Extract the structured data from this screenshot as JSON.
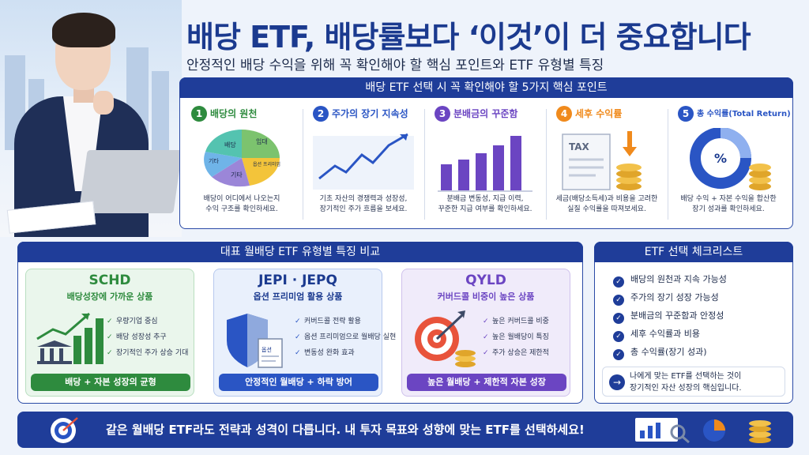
{
  "header": {
    "title": "배당 ETF, 배당률보다 ‘이것’이 더 중요합니다",
    "subtitle": "안정적인 배당 수익을 위해 꼭 확인해야 할 핵심 포인트와 ETF 유형별 특징"
  },
  "key_points": {
    "heading": "배당 ETF 선택 시 꼭 확인해야 할 5가지 핵심 포인트",
    "items": [
      {
        "num": "1",
        "label": "배당의 원천",
        "desc1": "배당이 어디에서 나오는지",
        "desc2": "수익 구조를 확인하세요.",
        "color": "#2e8b3e"
      },
      {
        "num": "2",
        "label": "주가의 장기 지속성",
        "desc1": "기초 자산의 경쟁력과 성장성,",
        "desc2": "장기적인 주가 흐름을 보세요.",
        "color": "#2a55c4"
      },
      {
        "num": "3",
        "label": "분배금의 꾸준함",
        "desc1": "분배금 변동성, 지급 이력,",
        "desc2": "꾸준한 지급 여부를 확인하세요.",
        "color": "#6b45c2"
      },
      {
        "num": "4",
        "label": "세후 수익률",
        "desc1": "세금(배당소득세)과 비용을 고려한",
        "desc2": "실질 수익률을 따져보세요.",
        "color": "#f08a1c"
      },
      {
        "num": "5",
        "label": "총 수익률(Total Return)",
        "desc1": "배당 수익 + 자본 수익을 합산한",
        "desc2": "장기 성과를 확인하세요.",
        "color": "#2a55c4"
      }
    ],
    "pie_labels": [
      "배당",
      "임대",
      "옵션 프리미엄",
      "기타",
      "기타"
    ],
    "tax_label": "TAX",
    "percent_label": "%"
  },
  "types": {
    "heading": "대표 월배당 ETF 유형별 특징 비교",
    "cards": [
      {
        "name": "SCHD",
        "sub": "배당성장에 가까운 상품",
        "items": [
          "우량기업 중심",
          "배당 성장성 추구",
          "장기적인 주가 상승 기대"
        ],
        "footer": "배당 + 자본 성장의 균형",
        "color": "#2e8b3e",
        "bg": "#eaf6ec"
      },
      {
        "name": "JEPI · JEPQ",
        "sub": "옵션 프리미엄 활용 상품",
        "items": [
          "커버드콜 전략 활용",
          "옵션 프리미엄으로 월배당 실현",
          "변동성 완화 효과"
        ],
        "footer": "안정적인 월배당 + 하락 방어",
        "color": "#2a55c4",
        "bg": "#e9f0fc"
      },
      {
        "name": "QYLD",
        "sub": "커버드콜 비중이 높은 상품",
        "items": [
          "높은 커버드콜 비중",
          "높은 월배당이 특징",
          "주가 상승은 제한적"
        ],
        "footer": "높은 월배당 + 제한적 자본 성장",
        "color": "#6b45c2",
        "bg": "#f0ebfa"
      }
    ],
    "shield_label": "옵션"
  },
  "checklist": {
    "heading": "ETF 선택 체크리스트",
    "items": [
      "배당의 원천과 지속 가능성",
      "주가의 장기 성장 가능성",
      "분배금의 꾸준함과 안정성",
      "세후 수익률과 비용",
      "총 수익률(장기 성과)"
    ],
    "note1": "나에게 맞는 ETF를 선택하는 것이",
    "note2": "장기적인 자산 성장의 핵심입니다."
  },
  "banner": {
    "text": "같은 월배당 ETF라도 전략과 성격이 다릅니다. 내 투자 목표와 성향에 맞는 ETF를 선택하세요!"
  }
}
